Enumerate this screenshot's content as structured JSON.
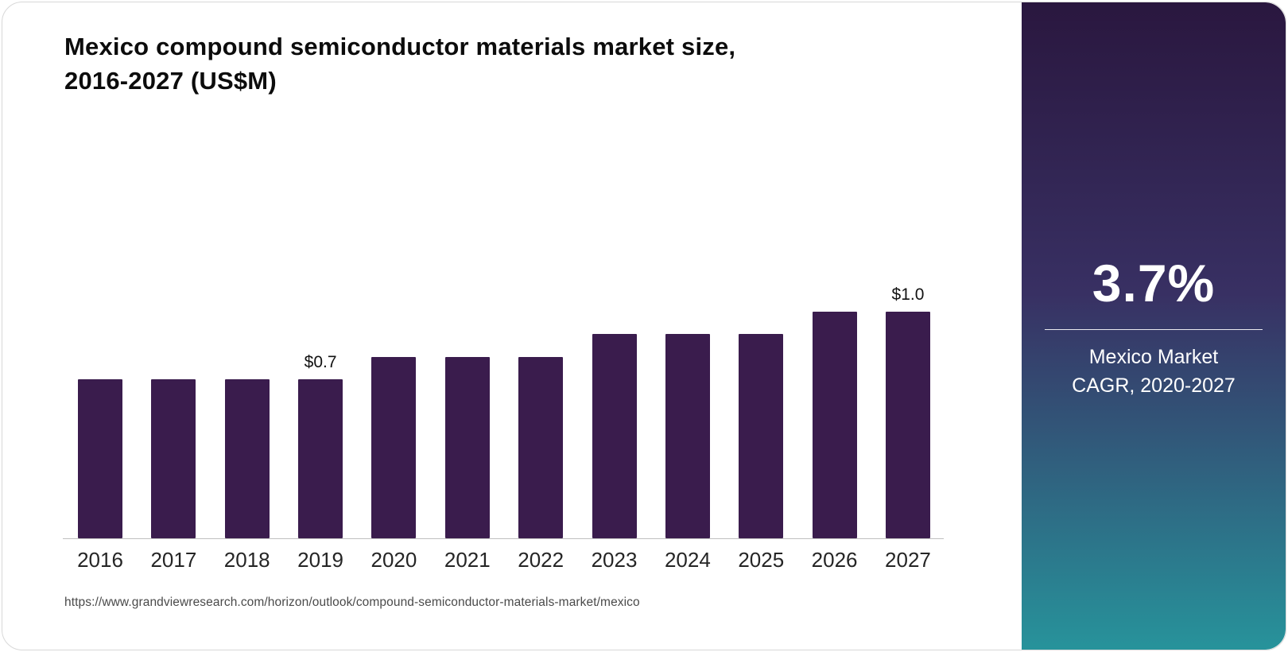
{
  "header": {
    "title_line1": "Mexico compound semiconductor materials market size,",
    "title_line2": "2016-2027 (US$M)"
  },
  "chart_data": {
    "type": "bar",
    "title": "Mexico compound semiconductor materials market size, 2016-2027 (US$M)",
    "categories": [
      "2016",
      "2017",
      "2018",
      "2019",
      "2020",
      "2021",
      "2022",
      "2023",
      "2024",
      "2025",
      "2026",
      "2027"
    ],
    "values": [
      0.7,
      0.7,
      0.7,
      0.7,
      0.8,
      0.8,
      0.8,
      0.9,
      0.9,
      0.9,
      1.0,
      1.0
    ],
    "bar_labels": {
      "2019": "$0.7",
      "2027": "$1.0"
    },
    "xlabel": "",
    "ylabel": "",
    "ylim": [
      0,
      1.1
    ],
    "grid": false,
    "legend_position": "none",
    "bar_color": "#3a1c4d"
  },
  "footer": {
    "source_url": "https://www.grandviewresearch.com/horizon/outlook/compound-semiconductor-materials-market/mexico"
  },
  "sidebar": {
    "cagr_value": "3.7%",
    "label_line1": "Mexico Market",
    "label_line2": "CAGR, 2020-2027",
    "gradient_top": "#2a173f",
    "gradient_mid": "#383063",
    "gradient_bottom": "#27939b"
  }
}
